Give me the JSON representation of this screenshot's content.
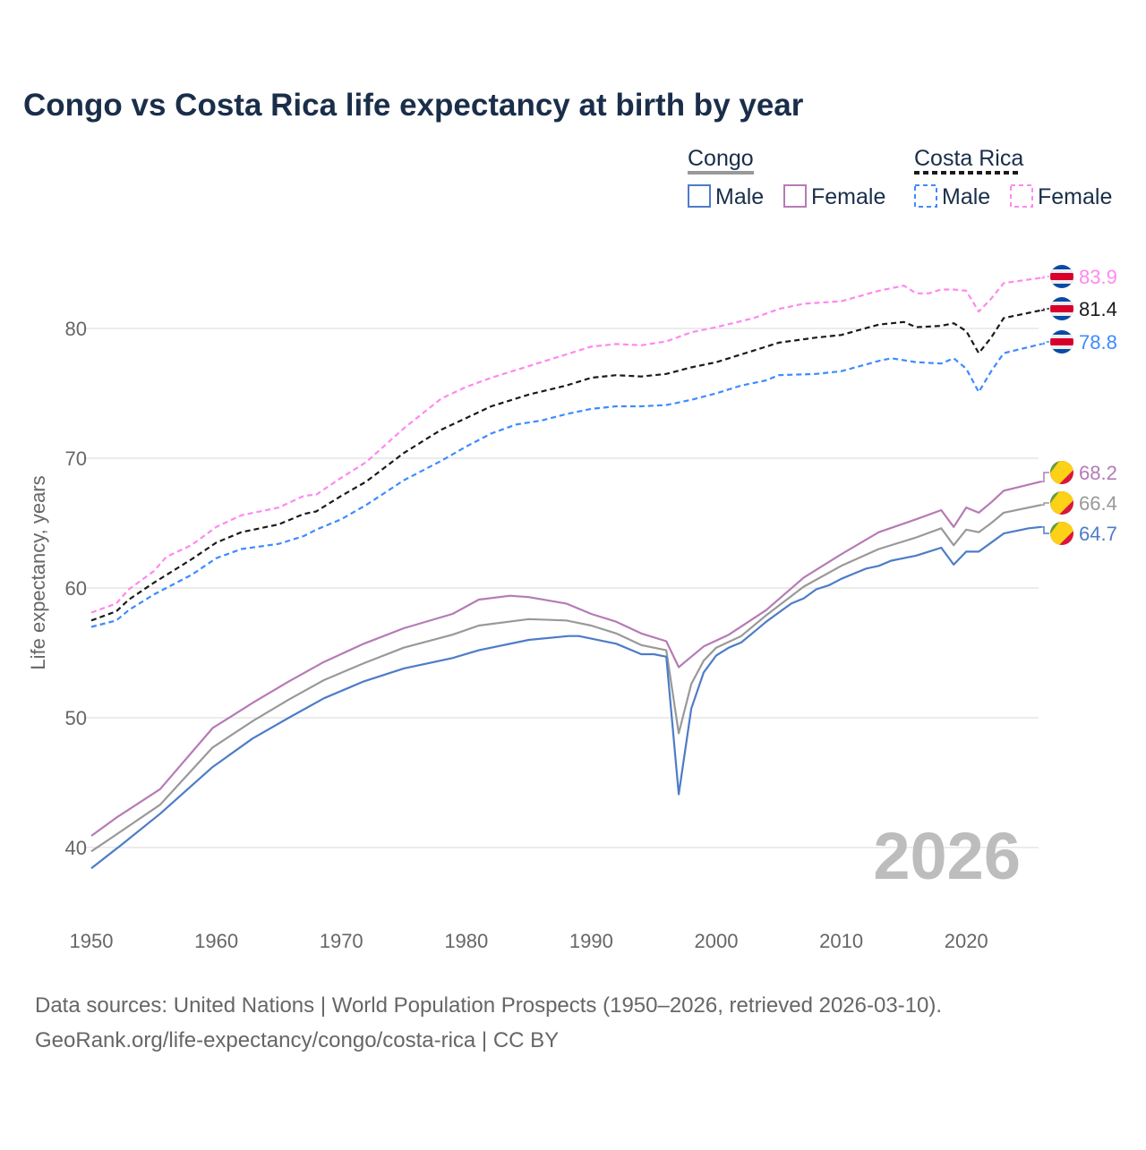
{
  "chart_data": {
    "type": "line",
    "title": "Congo vs Costa Rica life expectancy at birth by year",
    "xlabel": "",
    "ylabel": "Life expectancy, years",
    "xlim": [
      1950,
      2026
    ],
    "ylim": [
      36,
      86
    ],
    "x_ticks": [
      1950,
      1960,
      1970,
      1980,
      1990,
      2000,
      2010,
      2020
    ],
    "y_ticks": [
      40,
      50,
      60,
      70,
      80
    ],
    "grid": true,
    "legend_placement": "top-right",
    "legend": {
      "groups": [
        {
          "name": "Congo",
          "items": [
            "Male",
            "Female"
          ]
        },
        {
          "name": "Costa Rica",
          "items": [
            "Male",
            "Female"
          ]
        }
      ]
    },
    "watermark_year": "2026",
    "series": [
      {
        "name": "Costa Rica Female",
        "country": "Costa Rica",
        "color": "#ff88ee",
        "dashed": true,
        "end_label": "83.9",
        "points": [
          [
            1950,
            58.1
          ],
          [
            1952,
            58.8
          ],
          [
            1953,
            59.9
          ],
          [
            1955,
            61.3
          ],
          [
            1956,
            62.4
          ],
          [
            1958,
            63.3
          ],
          [
            1960,
            64.7
          ],
          [
            1962,
            65.6
          ],
          [
            1965,
            66.2
          ],
          [
            1967,
            67.1
          ],
          [
            1968,
            67.2
          ],
          [
            1970,
            68.5
          ],
          [
            1972,
            69.7
          ],
          [
            1975,
            72.3
          ],
          [
            1978,
            74.6
          ],
          [
            1980,
            75.5
          ],
          [
            1982,
            76.2
          ],
          [
            1985,
            77.1
          ],
          [
            1988,
            78.0
          ],
          [
            1990,
            78.6
          ],
          [
            1992,
            78.8
          ],
          [
            1994,
            78.7
          ],
          [
            1996,
            79.0
          ],
          [
            1998,
            79.7
          ],
          [
            2000,
            80.1
          ],
          [
            2003,
            80.8
          ],
          [
            2005,
            81.5
          ],
          [
            2007,
            81.9
          ],
          [
            2010,
            82.1
          ],
          [
            2013,
            82.9
          ],
          [
            2015,
            83.3
          ],
          [
            2016,
            82.7
          ],
          [
            2017,
            82.7
          ],
          [
            2018,
            83.0
          ],
          [
            2019,
            83.0
          ],
          [
            2020,
            82.9
          ],
          [
            2021,
            81.3
          ],
          [
            2022,
            82.3
          ],
          [
            2023,
            83.5
          ],
          [
            2026,
            83.9
          ]
        ]
      },
      {
        "name": "Costa Rica",
        "country": "Costa Rica",
        "color": "#1a1a1a",
        "dashed": true,
        "end_label": "81.4",
        "points": [
          [
            1950,
            57.5
          ],
          [
            1952,
            58.2
          ],
          [
            1953,
            59.1
          ],
          [
            1955,
            60.4
          ],
          [
            1958,
            62.2
          ],
          [
            1960,
            63.5
          ],
          [
            1962,
            64.3
          ],
          [
            1965,
            64.9
          ],
          [
            1967,
            65.7
          ],
          [
            1968,
            65.9
          ],
          [
            1970,
            67.1
          ],
          [
            1972,
            68.2
          ],
          [
            1975,
            70.4
          ],
          [
            1978,
            72.2
          ],
          [
            1980,
            73.1
          ],
          [
            1982,
            74.0
          ],
          [
            1985,
            74.9
          ],
          [
            1988,
            75.6
          ],
          [
            1990,
            76.2
          ],
          [
            1992,
            76.4
          ],
          [
            1994,
            76.3
          ],
          [
            1996,
            76.5
          ],
          [
            1998,
            77.0
          ],
          [
            2000,
            77.4
          ],
          [
            2003,
            78.3
          ],
          [
            2005,
            78.9
          ],
          [
            2008,
            79.3
          ],
          [
            2010,
            79.5
          ],
          [
            2013,
            80.3
          ],
          [
            2015,
            80.5
          ],
          [
            2016,
            80.1
          ],
          [
            2018,
            80.2
          ],
          [
            2019,
            80.4
          ],
          [
            2020,
            79.8
          ],
          [
            2021,
            78.1
          ],
          [
            2022,
            79.3
          ],
          [
            2023,
            80.8
          ],
          [
            2026,
            81.4
          ]
        ]
      },
      {
        "name": "Costa Rica Male",
        "country": "Costa Rica",
        "color": "#3d8bff",
        "dashed": true,
        "end_label": "78.8",
        "points": [
          [
            1950,
            57.0
          ],
          [
            1952,
            57.5
          ],
          [
            1953,
            58.3
          ],
          [
            1955,
            59.5
          ],
          [
            1958,
            61.0
          ],
          [
            1960,
            62.3
          ],
          [
            1962,
            63.0
          ],
          [
            1965,
            63.4
          ],
          [
            1967,
            64.0
          ],
          [
            1968,
            64.5
          ],
          [
            1970,
            65.3
          ],
          [
            1972,
            66.4
          ],
          [
            1975,
            68.3
          ],
          [
            1978,
            69.8
          ],
          [
            1980,
            70.9
          ],
          [
            1982,
            71.9
          ],
          [
            1984,
            72.6
          ],
          [
            1986,
            72.9
          ],
          [
            1988,
            73.4
          ],
          [
            1990,
            73.8
          ],
          [
            1992,
            74.0
          ],
          [
            1994,
            74.0
          ],
          [
            1996,
            74.1
          ],
          [
            1998,
            74.5
          ],
          [
            2000,
            75.0
          ],
          [
            2002,
            75.6
          ],
          [
            2004,
            76.0
          ],
          [
            2005,
            76.4
          ],
          [
            2008,
            76.5
          ],
          [
            2010,
            76.7
          ],
          [
            2013,
            77.5
          ],
          [
            2014,
            77.7
          ],
          [
            2016,
            77.4
          ],
          [
            2018,
            77.3
          ],
          [
            2019,
            77.7
          ],
          [
            2020,
            76.9
          ],
          [
            2021,
            75.1
          ],
          [
            2022,
            76.7
          ],
          [
            2023,
            78.1
          ],
          [
            2026,
            78.8
          ]
        ]
      },
      {
        "name": "Congo Female",
        "country": "Congo",
        "color": "#b57bb5",
        "dashed": false,
        "end_label": "68.2",
        "points": [
          [
            1950,
            40.9
          ],
          [
            1952,
            42.3
          ],
          [
            1955.5,
            44.5
          ],
          [
            1959.7,
            49.2
          ],
          [
            1963,
            51.2
          ],
          [
            1965.8,
            52.8
          ],
          [
            1968.6,
            54.3
          ],
          [
            1971.8,
            55.7
          ],
          [
            1975,
            56.9
          ],
          [
            1978.9,
            58.0
          ],
          [
            1981,
            59.1
          ],
          [
            1983.5,
            59.4
          ],
          [
            1985,
            59.3
          ],
          [
            1988,
            58.8
          ],
          [
            1990,
            58.0
          ],
          [
            1992,
            57.4
          ],
          [
            1994,
            56.5
          ],
          [
            1996,
            55.9
          ],
          [
            1997,
            53.9
          ],
          [
            1998,
            54.7
          ],
          [
            1999,
            55.5
          ],
          [
            2001,
            56.4
          ],
          [
            2004,
            58.3
          ],
          [
            2007,
            60.8
          ],
          [
            2010,
            62.6
          ],
          [
            2013,
            64.3
          ],
          [
            2016,
            65.3
          ],
          [
            2018,
            66.0
          ],
          [
            2019,
            64.7
          ],
          [
            2020,
            66.2
          ],
          [
            2021,
            65.8
          ],
          [
            2022,
            66.6
          ],
          [
            2023,
            67.5
          ],
          [
            2026,
            68.2
          ]
        ]
      },
      {
        "name": "Congo",
        "country": "Congo",
        "color": "#999999",
        "dashed": false,
        "end_label": "66.4",
        "points": [
          [
            1950,
            39.7
          ],
          [
            1952,
            41.0
          ],
          [
            1955.5,
            43.3
          ],
          [
            1959.7,
            47.7
          ],
          [
            1963,
            49.8
          ],
          [
            1965.8,
            51.4
          ],
          [
            1968.6,
            52.9
          ],
          [
            1971.8,
            54.2
          ],
          [
            1975,
            55.4
          ],
          [
            1978.9,
            56.4
          ],
          [
            1981,
            57.1
          ],
          [
            1985,
            57.6
          ],
          [
            1988,
            57.5
          ],
          [
            1990,
            57.1
          ],
          [
            1992,
            56.5
          ],
          [
            1994,
            55.6
          ],
          [
            1996,
            55.2
          ],
          [
            1997,
            48.8
          ],
          [
            1998,
            52.6
          ],
          [
            1999,
            54.4
          ],
          [
            2000,
            55.4
          ],
          [
            2002,
            56.3
          ],
          [
            2004,
            57.9
          ],
          [
            2007,
            60.1
          ],
          [
            2010,
            61.7
          ],
          [
            2013,
            63.0
          ],
          [
            2016,
            63.9
          ],
          [
            2018,
            64.6
          ],
          [
            2019,
            63.3
          ],
          [
            2020,
            64.5
          ],
          [
            2021,
            64.3
          ],
          [
            2022,
            65.0
          ],
          [
            2023,
            65.8
          ],
          [
            2026,
            66.4
          ]
        ]
      },
      {
        "name": "Congo Male",
        "country": "Congo",
        "color": "#4d7cc7",
        "dashed": false,
        "end_label": "64.7",
        "points": [
          [
            1950,
            38.4
          ],
          [
            1952.4,
            40.2
          ],
          [
            1955.5,
            42.6
          ],
          [
            1959.7,
            46.2
          ],
          [
            1962.9,
            48.4
          ],
          [
            1965.8,
            50.0
          ],
          [
            1968.6,
            51.5
          ],
          [
            1971.8,
            52.8
          ],
          [
            1975,
            53.8
          ],
          [
            1978.9,
            54.6
          ],
          [
            1981,
            55.2
          ],
          [
            1985,
            56.0
          ],
          [
            1988.2,
            56.3
          ],
          [
            1989,
            56.3
          ],
          [
            1992,
            55.7
          ],
          [
            1994,
            54.9
          ],
          [
            1995,
            54.9
          ],
          [
            1996,
            54.7
          ],
          [
            1997,
            44.1
          ],
          [
            1998,
            50.7
          ],
          [
            1999,
            53.5
          ],
          [
            2000,
            54.8
          ],
          [
            2001,
            55.4
          ],
          [
            2002,
            55.8
          ],
          [
            2003,
            56.6
          ],
          [
            2004,
            57.4
          ],
          [
            2005,
            58.1
          ],
          [
            2006,
            58.8
          ],
          [
            2007,
            59.2
          ],
          [
            2008,
            59.9
          ],
          [
            2009,
            60.2
          ],
          [
            2010,
            60.7
          ],
          [
            2011,
            61.1
          ],
          [
            2012,
            61.5
          ],
          [
            2013,
            61.7
          ],
          [
            2014,
            62.1
          ],
          [
            2015,
            62.3
          ],
          [
            2016,
            62.5
          ],
          [
            2017,
            62.8
          ],
          [
            2018,
            63.1
          ],
          [
            2019,
            61.8
          ],
          [
            2020,
            62.8
          ],
          [
            2021,
            62.8
          ],
          [
            2022,
            63.5
          ],
          [
            2023,
            64.2
          ],
          [
            2024,
            64.4
          ],
          [
            2025,
            64.6
          ],
          [
            2026,
            64.7
          ]
        ]
      }
    ]
  },
  "colors": {
    "title": "#1a2e4a",
    "axis_text": "#666666",
    "grid": "#e6e6e6",
    "watermark": "#bdbdbd"
  },
  "footer": {
    "line1": "Data sources: United Nations | World Population Prospects (1950–2026, retrieved 2026-03-10).",
    "line2": "GeoRank.org/life-expectancy/congo/costa-rica | CC BY"
  }
}
